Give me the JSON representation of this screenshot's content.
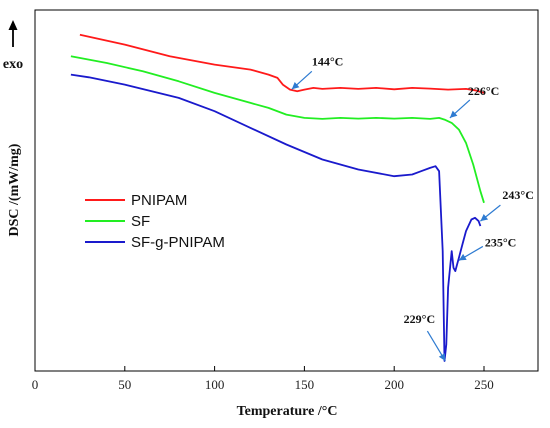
{
  "chart_data": {
    "type": "line",
    "xlabel": "Temperature /°C",
    "ylabel": "DSC /(mW/mg)",
    "direction_label": "exo",
    "xlim": [
      0,
      280
    ],
    "xticks": [
      0,
      50,
      100,
      150,
      200,
      250
    ],
    "grid": false,
    "legend_position": "lower-left",
    "series": [
      {
        "name": "PNIPAM",
        "color": "#ff1a1a",
        "x": [
          25,
          50,
          75,
          100,
          120,
          130,
          135,
          138,
          142,
          146,
          150,
          155,
          160,
          170,
          180,
          190,
          200,
          210,
          220,
          230,
          240,
          245,
          250
        ],
        "y": [
          0.95,
          0.92,
          0.885,
          0.86,
          0.845,
          0.83,
          0.82,
          0.8,
          0.785,
          0.78,
          0.785,
          0.79,
          0.787,
          0.79,
          0.787,
          0.79,
          0.786,
          0.79,
          0.788,
          0.785,
          0.787,
          0.783,
          0.775
        ]
      },
      {
        "name": "SF",
        "color": "#22ee22",
        "x": [
          20,
          40,
          60,
          80,
          100,
          120,
          130,
          140,
          150,
          160,
          170,
          180,
          190,
          200,
          210,
          220,
          225,
          228,
          232,
          236,
          240,
          244,
          248,
          250
        ],
        "y": [
          0.885,
          0.865,
          0.84,
          0.81,
          0.775,
          0.745,
          0.73,
          0.71,
          0.7,
          0.697,
          0.7,
          0.698,
          0.7,
          0.698,
          0.7,
          0.697,
          0.7,
          0.695,
          0.685,
          0.665,
          0.625,
          0.56,
          0.48,
          0.445
        ]
      },
      {
        "name": "SF-g-PNIPAM",
        "color": "#1a1acc",
        "x": [
          20,
          30,
          50,
          80,
          100,
          120,
          140,
          160,
          180,
          200,
          210,
          215,
          220,
          223,
          225,
          227,
          228,
          229,
          230,
          232,
          233,
          234,
          235,
          236,
          238,
          240,
          243,
          245,
          247,
          248
        ],
        "y": [
          0.83,
          0.822,
          0.8,
          0.76,
          0.72,
          0.67,
          0.62,
          0.575,
          0.545,
          0.525,
          0.53,
          0.54,
          0.55,
          0.555,
          0.54,
          0.3,
          -0.03,
          0.02,
          0.19,
          0.3,
          0.25,
          0.24,
          0.26,
          0.28,
          0.32,
          0.36,
          0.395,
          0.4,
          0.39,
          0.375
        ]
      }
    ],
    "annotations": [
      {
        "text": "144°C",
        "x": 143,
        "y": 0.786
      },
      {
        "text": "226°C",
        "x": 231,
        "y": 0.7
      },
      {
        "text": "243°C",
        "x": 248,
        "y": 0.39
      },
      {
        "text": "235°C",
        "x": 236,
        "y": 0.272
      },
      {
        "text": "229°C",
        "x": 228.5,
        "y": -0.03
      }
    ]
  }
}
